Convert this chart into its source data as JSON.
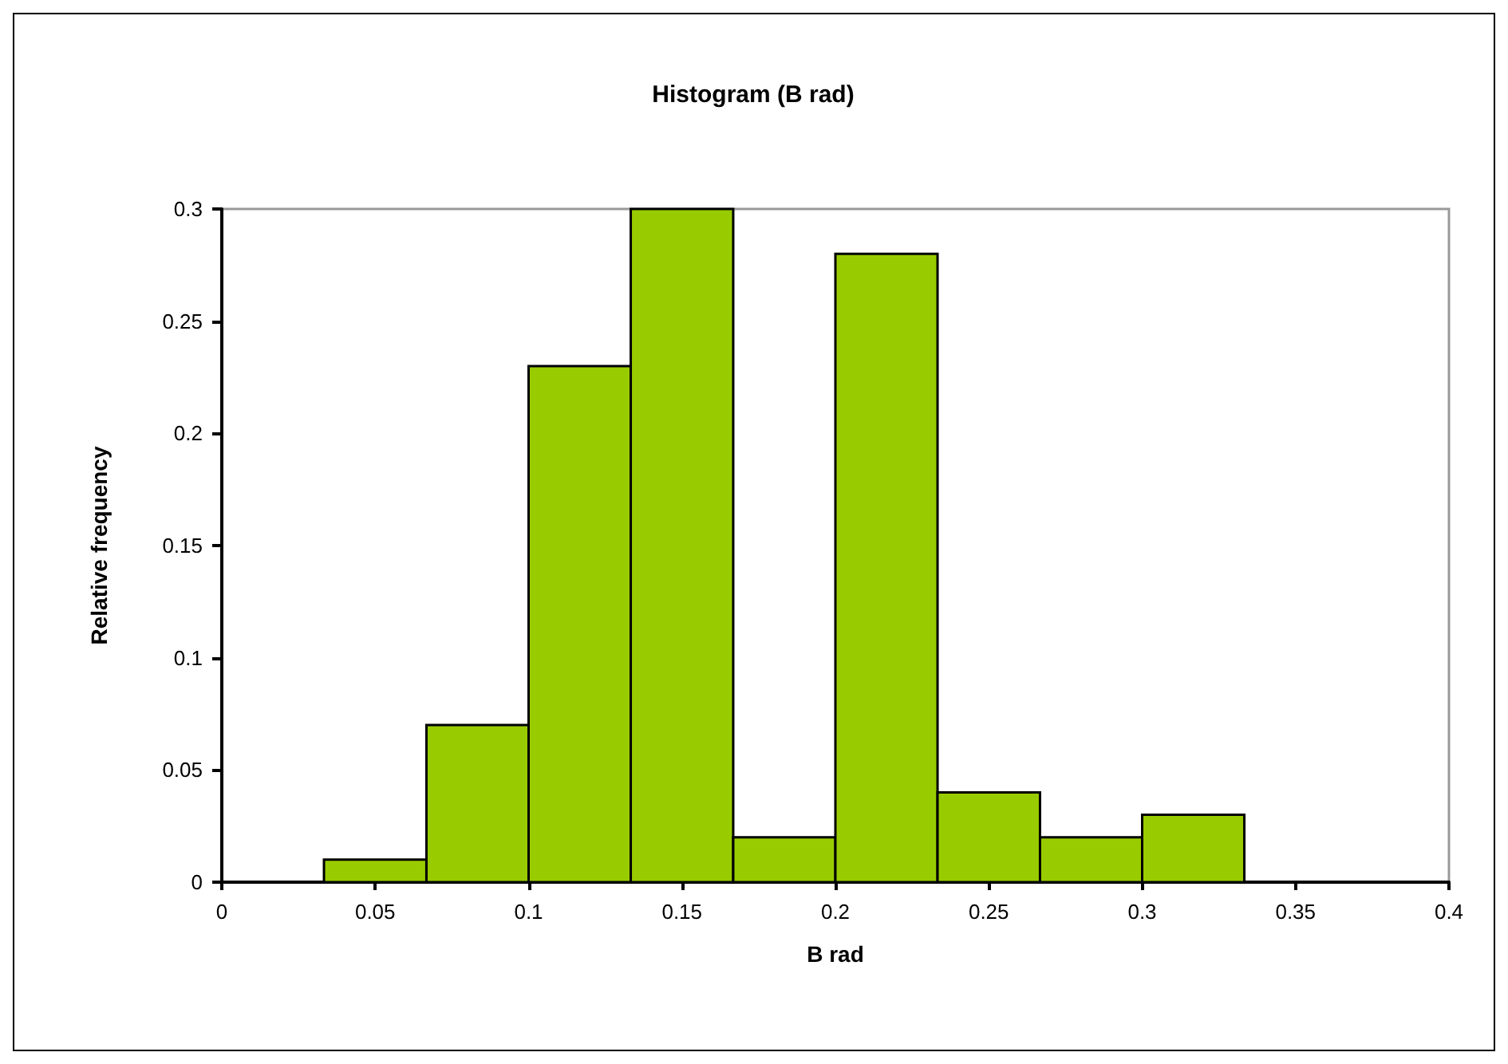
{
  "chart_data": {
    "type": "histogram",
    "title": "Histogram (B rad)",
    "xlabel": "B rad",
    "ylabel": "Relative frequency",
    "bins": [
      0,
      0.0333,
      0.0667,
      0.1,
      0.1333,
      0.1667,
      0.2,
      0.2333,
      0.2667,
      0.3,
      0.3333,
      0.3667,
      0.4
    ],
    "values": [
      0,
      0.01,
      0.07,
      0.23,
      0.3,
      0.02,
      0.28,
      0.04,
      0.02,
      0.03,
      0,
      0
    ],
    "color": "#99cc00",
    "xlim": [
      0,
      0.4
    ],
    "xticks": [
      0,
      0.05,
      0.1,
      0.15,
      0.2,
      0.25,
      0.3,
      0.35,
      0.4
    ],
    "ylim": [
      0,
      0.3
    ],
    "yticks": [
      0,
      0.05,
      0.1,
      0.15,
      0.2,
      0.25,
      0.3
    ],
    "grid": false
  }
}
